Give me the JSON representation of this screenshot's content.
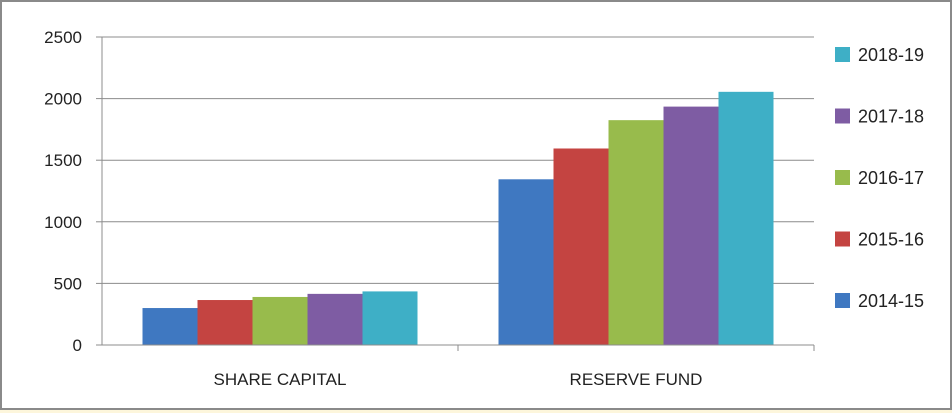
{
  "chart_data": {
    "type": "bar",
    "title": "",
    "xlabel": "",
    "ylabel": "",
    "categories": [
      "SHARE CAPITAL",
      "RESERVE FUND"
    ],
    "series": [
      {
        "name": "2014-15",
        "values": [
          300,
          1345
        ],
        "color": "#3f78c1"
      },
      {
        "name": "2015-16",
        "values": [
          365,
          1595
        ],
        "color": "#c44441"
      },
      {
        "name": "2016-17",
        "values": [
          390,
          1825
        ],
        "color": "#98bb4c"
      },
      {
        "name": "2017-18",
        "values": [
          415,
          1935
        ],
        "color": "#7e5ca3"
      },
      {
        "name": "2018-19",
        "values": [
          435,
          2055
        ],
        "color": "#3eafc6"
      }
    ],
    "ylim": [
      0,
      2500
    ],
    "yticks": [
      "0",
      "500",
      "1000",
      "1500",
      "2000",
      "2500"
    ],
    "grid": "horizontal",
    "legend": {
      "position": "right",
      "order": [
        "2018-19",
        "2017-18",
        "2016-17",
        "2015-16",
        "2014-15"
      ]
    }
  }
}
